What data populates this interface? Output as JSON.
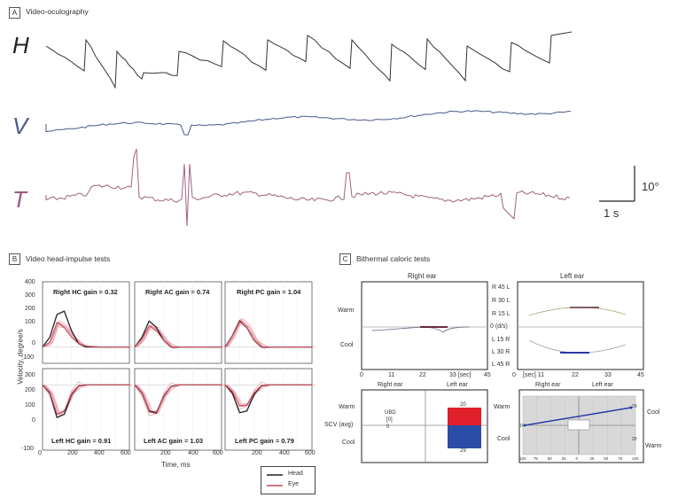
{
  "panel_a": {
    "badge": "A",
    "title": "Video-oculography",
    "traces": [
      {
        "label": "H",
        "color": "#222222"
      },
      {
        "label": "V",
        "color": "#4a5a8a"
      },
      {
        "label": "T",
        "color": "#9a5a80"
      }
    ],
    "scale_bar": {
      "vertical_label": "10°",
      "horizontal_label": "1 s"
    }
  },
  "panel_b": {
    "badge": "B",
    "title": "Video head-impulse tests",
    "ylabel": "Velocity, degree/s",
    "xlabel": "Time, ms",
    "yticks": [
      "400",
      "300",
      "200",
      "100",
      "0",
      "-100"
    ],
    "xticks": [
      "0",
      "200",
      "400",
      "600"
    ],
    "xticks_inner": [
      "200",
      "400",
      "600"
    ],
    "cells": [
      {
        "gain_label": "Right HC gain = 0.32"
      },
      {
        "gain_label": "Right AC gain = 0.74"
      },
      {
        "gain_label": "Right PC gain = 1.04"
      },
      {
        "gain_label": "Left HC gain = 0.91"
      },
      {
        "gain_label": "Left AC gain = 1.03"
      },
      {
        "gain_label": "Left PC gain = 0.79"
      }
    ],
    "legend": [
      {
        "name": "Head",
        "color": "#222222"
      },
      {
        "name": "Eye",
        "color": "#c04a5a"
      }
    ]
  },
  "panel_c": {
    "badge": "C",
    "title": "Bithermal caloric tests",
    "right_ear_title": "Right ear",
    "left_ear_title": "Left ear",
    "warm_label": "Warm",
    "cool_label": "Cool",
    "center_labels": [
      "R 45 L",
      "R 30 L",
      "R 15 L",
      "0 (d/s)",
      "L 15 R",
      "L 30 R",
      "L 45 R"
    ],
    "left_xticks": [
      "0",
      "11",
      "22",
      "33 [sec]",
      "45"
    ],
    "right_xticks": [
      "0",
      "[sec] 11",
      "22",
      "33",
      "45"
    ],
    "bottom_left": {
      "ear_labels": [
        "Right ear",
        "Left ear"
      ],
      "warm": "Warm",
      "scv": "SCV (avg)",
      "cool": "Cool",
      "ubd_label": "UBD",
      "ubd_box": "[0]",
      "ubd_value": "0",
      "bar_top_value": "20",
      "bar_bottom_value": "29",
      "bar_red": "#e0202a",
      "bar_blue": "#2a4ea8"
    },
    "bottom_right": {
      "ear_labels": [
        "Right ear",
        "Left ear"
      ],
      "warm_left": "Warm",
      "cool_left": "Cool",
      "cool_right": "Cool",
      "warm_right": "Warm",
      "zero_label": "0",
      "right_top_value": "29",
      "right_bottom_value": "20",
      "xticks": [
        "100",
        "75",
        "50",
        "25",
        "0",
        "25",
        "50",
        "75",
        "100"
      ]
    }
  },
  "chart_data": [
    {
      "type": "line",
      "title": "Video-oculography",
      "series": [
        {
          "name": "H"
        },
        {
          "name": "V"
        },
        {
          "name": "T"
        }
      ]
    },
    {
      "type": "line",
      "title": "Video head-impulse tests",
      "xlabel": "Time, ms",
      "ylabel": "Velocity, degree/s",
      "xlim": [
        0,
        600
      ],
      "ylim": [
        -100,
        400
      ],
      "series": [
        {
          "name": "Head",
          "panel": "Right HC gain = 0.32",
          "x": [
            0,
            50,
            100,
            150,
            200,
            250,
            300,
            400,
            600
          ],
          "y": [
            0,
            60,
            200,
            220,
            100,
            20,
            0,
            0,
            0
          ]
        },
        {
          "name": "Eye",
          "panel": "Right HC gain = 0.32",
          "x": [
            0,
            50,
            100,
            150,
            200,
            250,
            300,
            400,
            600
          ],
          "y": [
            0,
            30,
            150,
            120,
            60,
            20,
            5,
            0,
            0
          ]
        },
        {
          "name": "Head",
          "panel": "Right AC gain = 0.74",
          "x": [
            0,
            50,
            100,
            150,
            200,
            250,
            300,
            600
          ],
          "y": [
            0,
            60,
            160,
            120,
            40,
            0,
            0,
            0
          ]
        },
        {
          "name": "Eye",
          "panel": "Right AC gain = 0.74",
          "x": [
            0,
            50,
            100,
            150,
            200,
            250,
            300,
            600
          ],
          "y": [
            0,
            50,
            130,
            100,
            40,
            0,
            0,
            0
          ]
        },
        {
          "name": "Head",
          "panel": "Right PC gain = 1.04",
          "x": [
            0,
            50,
            100,
            150,
            200,
            250,
            300,
            600
          ],
          "y": [
            0,
            70,
            160,
            120,
            40,
            0,
            0,
            0
          ]
        },
        {
          "name": "Eye",
          "panel": "Right PC gain = 1.04",
          "x": [
            0,
            50,
            100,
            150,
            200,
            250,
            300,
            600
          ],
          "y": [
            0,
            70,
            165,
            120,
            40,
            0,
            0,
            0
          ]
        },
        {
          "name": "Head",
          "panel": "Left HC gain = 0.91",
          "x": [
            0,
            50,
            100,
            150,
            200,
            250,
            300,
            600
          ],
          "y": [
            300,
            250,
            100,
            120,
            240,
            295,
            300,
            300
          ]
        },
        {
          "name": "Eye",
          "panel": "Left HC gain = 0.91",
          "x": [
            0,
            50,
            100,
            150,
            200,
            250,
            300,
            600
          ],
          "y": [
            300,
            255,
            120,
            140,
            245,
            295,
            300,
            300
          ]
        },
        {
          "name": "Head",
          "panel": "Left AC gain = 1.03",
          "x": [
            0,
            50,
            100,
            150,
            200,
            250,
            300,
            600
          ],
          "y": [
            300,
            250,
            140,
            130,
            230,
            290,
            300,
            300
          ]
        },
        {
          "name": "Eye",
          "panel": "Left AC gain = 1.03",
          "x": [
            0,
            50,
            100,
            150,
            200,
            250,
            300,
            600
          ],
          "y": [
            300,
            250,
            135,
            125,
            230,
            290,
            300,
            300
          ]
        },
        {
          "name": "Head",
          "panel": "Left PC gain = 0.79",
          "x": [
            0,
            50,
            100,
            150,
            200,
            250,
            300,
            600
          ],
          "y": [
            300,
            250,
            130,
            140,
            240,
            295,
            300,
            300
          ]
        },
        {
          "name": "Eye",
          "panel": "Left PC gain = 0.79",
          "x": [
            0,
            50,
            100,
            150,
            200,
            250,
            300,
            600
          ],
          "y": [
            300,
            260,
            170,
            175,
            250,
            295,
            300,
            300
          ]
        }
      ]
    },
    {
      "type": "bar",
      "title": "Bithermal caloric tests",
      "ylabel": "SCV (avg)",
      "categories": [
        "Left ear"
      ],
      "series": [
        {
          "name": "Warm",
          "values": [
            20
          ]
        },
        {
          "name": "Cool",
          "values": [
            29
          ]
        }
      ]
    }
  ]
}
